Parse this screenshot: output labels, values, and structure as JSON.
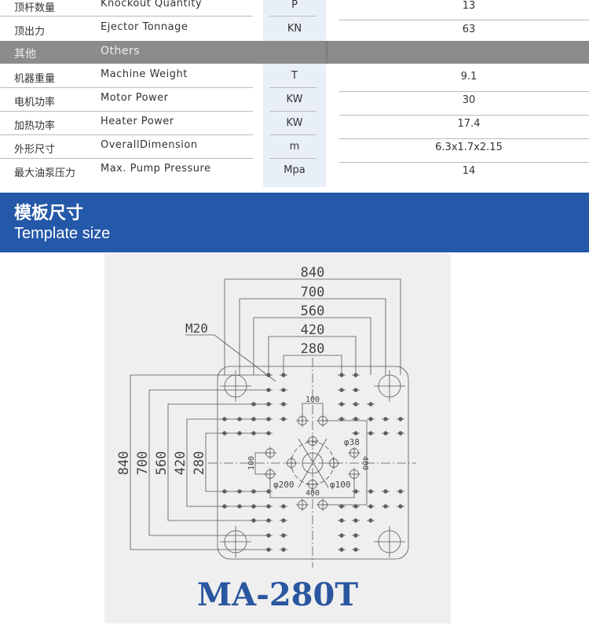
{
  "specs": [
    {
      "cn": "顶杆数量",
      "en": "Knockout Quantity",
      "unit": "P",
      "value": "13"
    },
    {
      "cn": "顶出力",
      "en": "Ejector Tonnage",
      "unit": "KN",
      "value": "63"
    }
  ],
  "others": {
    "cn": "其他",
    "en": "Others"
  },
  "others_specs": [
    {
      "cn": "机器重量",
      "en": "Machine Weight",
      "unit": "T",
      "value": "9.1"
    },
    {
      "cn": "电机功率",
      "en": "Motor Power",
      "unit": "KW",
      "value": "30"
    },
    {
      "cn": "加热功率",
      "en": "Heater Power",
      "unit": "KW",
      "value": "17.4"
    },
    {
      "cn": "外形尺寸",
      "en": "OverallDimension",
      "unit": "m",
      "value": "6.3x1.7x2.15"
    },
    {
      "cn": "最大油泵压力",
      "en": "Max. Pump Pressure",
      "unit": "Mpa",
      "value": "14"
    }
  ],
  "banner": {
    "title_cn": "模板尺寸",
    "title_en": "Template size"
  },
  "drawing": {
    "dims_horizontal": [
      "840",
      "700",
      "560",
      "420",
      "280"
    ],
    "dims_vertical": [
      "840",
      "700",
      "560",
      "420",
      "280"
    ],
    "thread": "M20",
    "d100": "100",
    "d100v": "100",
    "d400h": "400",
    "d400v": "400",
    "phi38": "φ38",
    "phi200": "φ200",
    "phi100": "φ100"
  },
  "model": "MA-280T",
  "colors": {
    "banner": "#2458a8",
    "model": "#2a56a0",
    "others_bar": "#8b8b8b"
  }
}
